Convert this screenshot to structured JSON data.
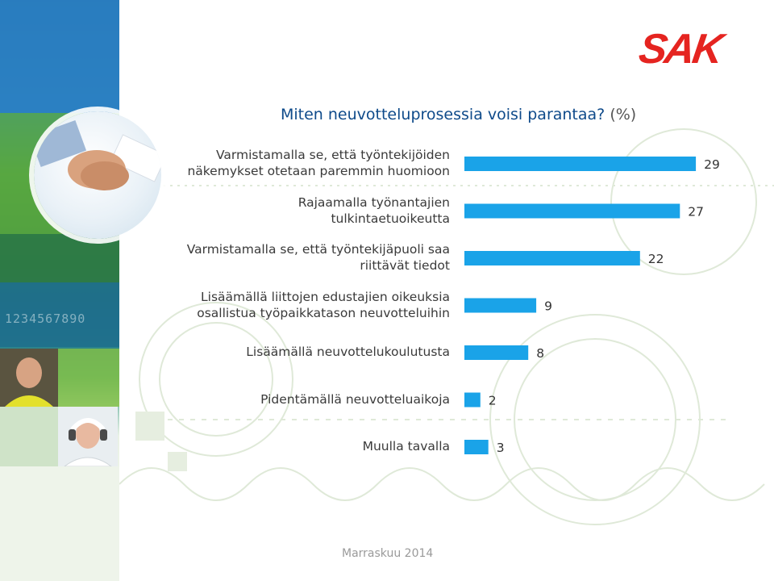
{
  "brand": {
    "logo_text": "SAK",
    "color": "#e52420"
  },
  "decorative_digits": "1234567890",
  "footer": {
    "date": "Marraskuu 2014"
  },
  "chart_data": {
    "type": "bar",
    "orientation": "horizontal",
    "title": "Miten neuvotteluprosessia voisi parantaa?",
    "title_unit": "(%)",
    "xlabel": "",
    "ylabel": "",
    "xlim": [
      0,
      30
    ],
    "grid": false,
    "bar_color": "#1aa3e8",
    "categories": [
      "Varmistamalla se, että työntekijöiden\nnäkemykset otetaan paremmin huomioon",
      "Rajaamalla työnantajien\ntulkintaetuoikeutta",
      "Varmistamalla se, että työntekijäpuoli saa\nriittävät tiedot",
      "Lisäämällä liittojen edustajien oikeuksia\nosallistua työpaikkatason neuvotteluihin",
      "Lisäämällä neuvottelukoulutusta",
      "Pidentämällä neuvotteluaikoja",
      "Muulla tavalla"
    ],
    "values": [
      29,
      27,
      22,
      9,
      8,
      2,
      3
    ]
  }
}
